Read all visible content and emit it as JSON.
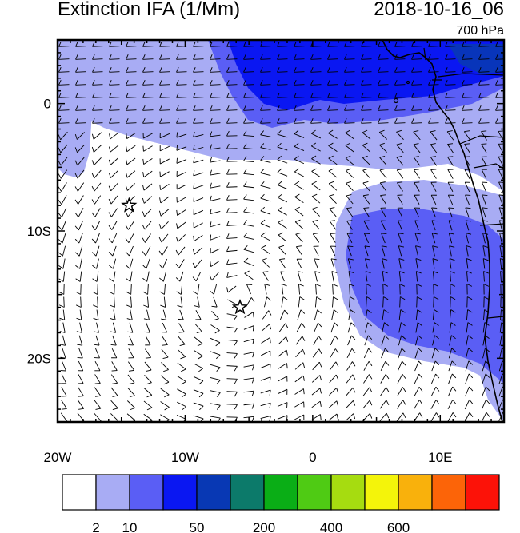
{
  "title": "Extinction IFA (1/Mm)",
  "timestamp": "2018-10-16_06",
  "level": "700 hPa",
  "map": {
    "lon_range": [
      -20,
      15
    ],
    "lat_range": [
      -25,
      5
    ],
    "x_ticks": [
      {
        "value": -20,
        "label": "20W"
      },
      {
        "value": -10,
        "label": "10W"
      },
      {
        "value": 0,
        "label": "0"
      },
      {
        "value": 10,
        "label": "10E"
      }
    ],
    "y_ticks": [
      {
        "value": 0,
        "label": "0"
      },
      {
        "value": -10,
        "label": "10S"
      },
      {
        "value": -20,
        "label": "20S"
      }
    ],
    "markers": [
      {
        "name": "star",
        "lon": -14.4,
        "lat": -8.0
      },
      {
        "name": "star",
        "lon": -5.7,
        "lat": -16.0
      }
    ]
  },
  "colorbar": {
    "colors": [
      "#ffffff",
      "#a8acf4",
      "#5a5ef5",
      "#0a17f2",
      "#0838b4",
      "#0c7a6a",
      "#0aae16",
      "#4fcb14",
      "#a6dc10",
      "#f4f40a",
      "#f9b10c",
      "#fc6408",
      "#fc1208"
    ],
    "labels": [
      {
        "after_box": 1,
        "text": "2"
      },
      {
        "after_box": 2,
        "text": "10"
      },
      {
        "after_box": 4,
        "text": "50"
      },
      {
        "after_box": 6,
        "text": "200"
      },
      {
        "after_box": 8,
        "text": "400"
      },
      {
        "after_box": 10,
        "text": "600"
      }
    ]
  }
}
